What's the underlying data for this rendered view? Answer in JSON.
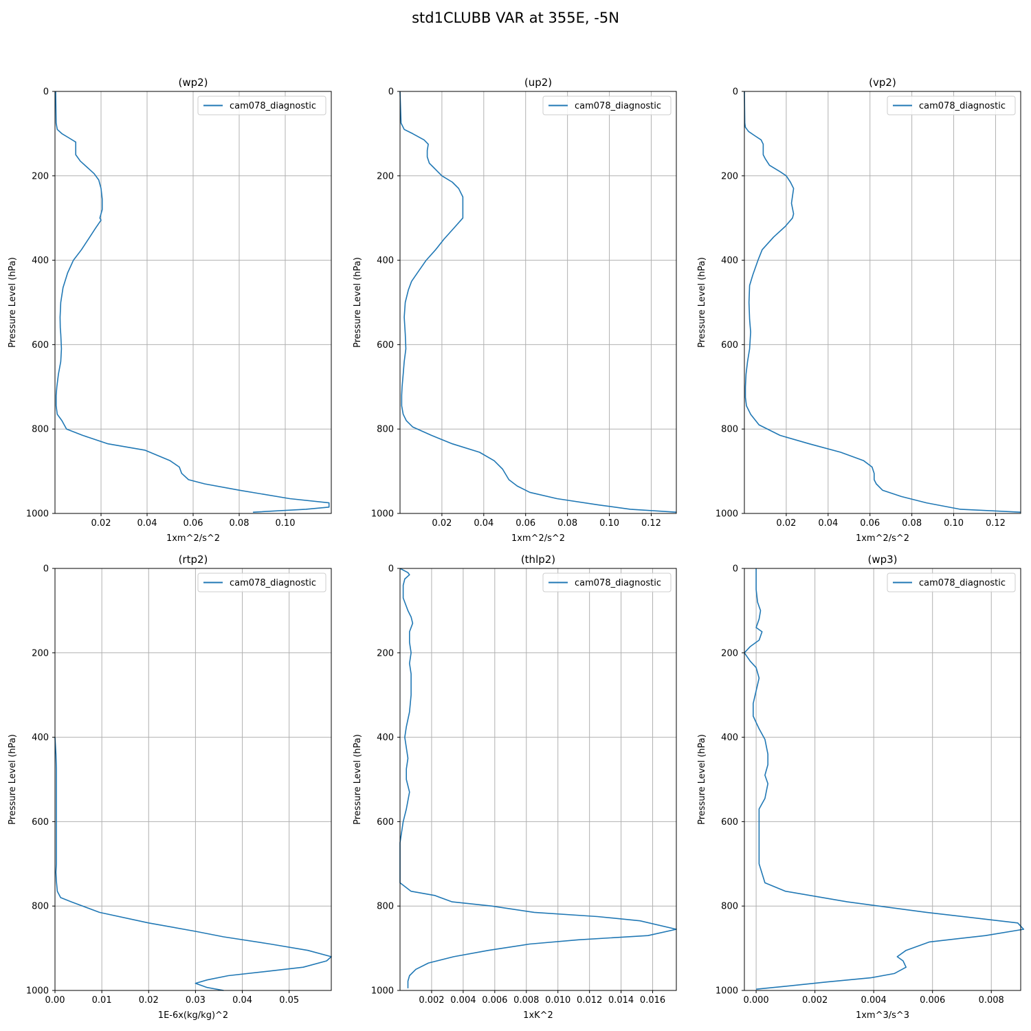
{
  "figure": {
    "title": "std1CLUBB VAR at 355E, -5N"
  },
  "style": {
    "line_color": "#1f77b4",
    "grid_color": "#b0b0b0",
    "axis_color": "#000000"
  },
  "chart_data": [
    {
      "type": "line",
      "title": "(wp2)",
      "xlabel": "1xm^2/s^2",
      "ylabel": "Pressure Level (hPa)",
      "xlim": [
        0.0,
        0.12
      ],
      "ylim": [
        1000,
        0
      ],
      "y_inverted": true,
      "grid": true,
      "legend_position": "top-right",
      "xticks": [
        0.02,
        0.04,
        0.06,
        0.08,
        0.1
      ],
      "xtick_labels": [
        "0.02",
        "0.04",
        "0.06",
        "0.08",
        "0.10"
      ],
      "yticks": [
        0,
        200,
        400,
        600,
        800,
        1000
      ],
      "ytick_labels": [
        "0",
        "200",
        "400",
        "600",
        "800",
        "1000"
      ],
      "series": [
        {
          "name": "cam078_diagnostic",
          "x": [
            0.0003,
            0.0005,
            0.001,
            0.003,
            0.006,
            0.009,
            0.009,
            0.011,
            0.014,
            0.017,
            0.019,
            0.02,
            0.0205,
            0.0205,
            0.0195,
            0.02,
            0.0175,
            0.0145,
            0.0115,
            0.008,
            0.0055,
            0.0035,
            0.0025,
            0.0022,
            0.0023,
            0.0025,
            0.0028,
            0.0025,
            0.0015,
            0.0008,
            0.0005,
            0.0005,
            0.001,
            0.003,
            0.005,
            0.012,
            0.023,
            0.039,
            0.05,
            0.054,
            0.055,
            0.058,
            0.065,
            0.08,
            0.102,
            0.119,
            0.119,
            0.109,
            0.086
          ],
          "y": [
            0,
            75,
            90,
            100,
            110,
            120,
            150,
            165,
            180,
            195,
            210,
            230,
            255,
            280,
            300,
            305,
            325,
            350,
            375,
            400,
            430,
            465,
            500,
            535,
            560,
            575,
            610,
            640,
            670,
            700,
            720,
            745,
            765,
            780,
            800,
            815,
            835,
            850,
            875,
            890,
            905,
            920,
            930,
            945,
            965,
            975,
            985,
            990,
            997
          ]
        }
      ]
    },
    {
      "type": "line",
      "title": "(up2)",
      "xlabel": "1xm^2/s^2",
      "ylabel": "Pressure Level (hPa)",
      "xlim": [
        0.0,
        0.132
      ],
      "ylim": [
        1000,
        0
      ],
      "y_inverted": true,
      "grid": true,
      "legend_position": "top-right",
      "xticks": [
        0.02,
        0.04,
        0.06,
        0.08,
        0.1,
        0.12
      ],
      "xtick_labels": [
        "0.02",
        "0.04",
        "0.06",
        "0.08",
        "0.10",
        "0.12"
      ],
      "yticks": [
        0,
        200,
        400,
        600,
        800,
        1000
      ],
      "ytick_labels": [
        "0",
        "200",
        "400",
        "600",
        "800",
        "1000"
      ],
      "series": [
        {
          "name": "cam078_diagnostic",
          "x": [
            0.0,
            0.0005,
            0.002,
            0.006,
            0.0115,
            0.0135,
            0.013,
            0.013,
            0.014,
            0.016,
            0.02,
            0.025,
            0.028,
            0.03,
            0.03,
            0.03,
            0.0255,
            0.021,
            0.017,
            0.0125,
            0.009,
            0.0055,
            0.004,
            0.0025,
            0.002,
            0.0025,
            0.0028,
            0.002,
            0.0015,
            0.001,
            0.0008,
            0.0008,
            0.0015,
            0.003,
            0.006,
            0.015,
            0.025,
            0.038,
            0.045,
            0.049,
            0.052,
            0.056,
            0.062,
            0.075,
            0.095,
            0.11,
            0.132
          ],
          "y": [
            0,
            75,
            90,
            100,
            115,
            125,
            140,
            155,
            170,
            180,
            200,
            215,
            230,
            250,
            275,
            300,
            325,
            350,
            375,
            400,
            425,
            450,
            470,
            500,
            535,
            575,
            610,
            640,
            670,
            700,
            720,
            745,
            765,
            780,
            795,
            815,
            835,
            855,
            875,
            895,
            920,
            935,
            950,
            965,
            980,
            990,
            997
          ]
        }
      ]
    },
    {
      "type": "line",
      "title": "(vp2)",
      "xlabel": "1xm^2/s^2",
      "ylabel": "Pressure Level (hPa)",
      "xlim": [
        0.0,
        0.132
      ],
      "ylim": [
        1000,
        0
      ],
      "y_inverted": true,
      "grid": true,
      "legend_position": "top-right",
      "xticks": [
        0.02,
        0.04,
        0.06,
        0.08,
        0.1,
        0.12
      ],
      "xtick_labels": [
        "0.02",
        "0.04",
        "0.06",
        "0.08",
        "0.10",
        "0.12"
      ],
      "yticks": [
        0,
        200,
        400,
        600,
        800,
        1000
      ],
      "ytick_labels": [
        "0",
        "200",
        "400",
        "600",
        "800",
        "1000"
      ],
      "series": [
        {
          "name": "cam078_diagnostic",
          "x": [
            0.0,
            0.0002,
            0.0005,
            0.002,
            0.005,
            0.008,
            0.009,
            0.009,
            0.01,
            0.012,
            0.017,
            0.02,
            0.022,
            0.0235,
            0.0225,
            0.0235,
            0.023,
            0.0195,
            0.014,
            0.0085,
            0.0065,
            0.004,
            0.0025,
            0.0022,
            0.0025,
            0.003,
            0.0025,
            0.0015,
            0.0008,
            0.0005,
            0.0005,
            0.001,
            0.003,
            0.007,
            0.017,
            0.031,
            0.046,
            0.057,
            0.061,
            0.062,
            0.062,
            0.063,
            0.066,
            0.075,
            0.087,
            0.103,
            0.132
          ],
          "y": [
            0,
            75,
            85,
            95,
            105,
            115,
            125,
            150,
            160,
            175,
            190,
            200,
            215,
            230,
            265,
            290,
            300,
            320,
            345,
            375,
            400,
            435,
            460,
            500,
            540,
            570,
            610,
            640,
            670,
            700,
            725,
            745,
            765,
            790,
            815,
            835,
            855,
            875,
            890,
            905,
            920,
            930,
            945,
            960,
            975,
            990,
            997
          ]
        }
      ]
    },
    {
      "type": "line",
      "title": "(rtp2)",
      "xlabel": "1E-6x(kg/kg)^2",
      "ylabel": "Pressure Level (hPa)",
      "xlim": [
        0.0,
        0.059
      ],
      "ylim": [
        1000,
        0
      ],
      "y_inverted": true,
      "grid": true,
      "legend_position": "top-right",
      "xticks": [
        0.0,
        0.01,
        0.02,
        0.03,
        0.04,
        0.05
      ],
      "xtick_labels": [
        "0.00",
        "0.01",
        "0.02",
        "0.03",
        "0.04",
        "0.05"
      ],
      "yticks": [
        0,
        200,
        400,
        600,
        800,
        1000
      ],
      "ytick_labels": [
        "0",
        "200",
        "400",
        "600",
        "800",
        "1000"
      ],
      "series": [
        {
          "name": "cam078_diagnostic",
          "x": [
            0.0,
            0.0002,
            0.0003,
            0.0003,
            0.0003,
            0.0003,
            0.0003,
            0.0003,
            0.0002,
            0.0003,
            0.0005,
            0.0012,
            0.0035,
            0.0095,
            0.02,
            0.03,
            0.036,
            0.046,
            0.054,
            0.059,
            0.058,
            0.053,
            0.045,
            0.037,
            0.0325,
            0.03,
            0.0325,
            0.036
          ],
          "y": [
            400,
            440,
            475,
            510,
            560,
            610,
            650,
            700,
            720,
            740,
            765,
            780,
            790,
            815,
            840,
            860,
            873,
            890,
            905,
            920,
            930,
            945,
            955,
            965,
            975,
            983,
            993,
            1000
          ]
        }
      ]
    },
    {
      "type": "line",
      "title": "(thlp2)",
      "xlabel": "1xK^2",
      "ylabel": "Pressure Level (hPa)",
      "xlim": [
        0.0,
        0.0175
      ],
      "ylim": [
        1000,
        0
      ],
      "y_inverted": true,
      "grid": true,
      "legend_position": "top-right",
      "xticks": [
        0.002,
        0.004,
        0.006,
        0.008,
        0.01,
        0.012,
        0.014,
        0.016
      ],
      "xtick_labels": [
        "0.002",
        "0.004",
        "0.006",
        "0.008",
        "0.010",
        "0.012",
        "0.014",
        "0.016"
      ],
      "yticks": [
        0,
        200,
        400,
        600,
        800,
        1000
      ],
      "ytick_labels": [
        "0",
        "200",
        "400",
        "600",
        "800",
        "1000"
      ],
      "series": [
        {
          "name": "cam078_diagnostic",
          "x": [
            0.0,
            0.0005,
            0.0006,
            0.0003,
            0.0002,
            0.0002,
            0.0005,
            0.0007,
            0.0008,
            0.0006,
            0.0006,
            0.0007,
            0.0006,
            0.0007,
            0.0007,
            0.0006,
            0.0004,
            0.0003,
            0.0004,
            0.0005,
            0.0004,
            0.0004,
            0.0006,
            0.0004,
            0.0002,
            0.0001,
            0.0,
            0.0,
            0.0,
            0.0,
            0.0007,
            0.0022,
            0.0033,
            0.0058,
            0.0085,
            0.0125,
            0.0152,
            0.0175,
            0.0157,
            0.0113,
            0.0082,
            0.0056,
            0.0034,
            0.0018,
            0.001,
            0.0006,
            0.0005,
            0.0005
          ],
          "y": [
            0,
            10,
            15,
            25,
            40,
            70,
            100,
            115,
            130,
            150,
            175,
            200,
            225,
            250,
            300,
            340,
            375,
            400,
            425,
            450,
            475,
            500,
            530,
            570,
            600,
            625,
            650,
            700,
            725,
            745,
            765,
            775,
            790,
            800,
            815,
            825,
            835,
            855,
            870,
            880,
            890,
            905,
            920,
            935,
            950,
            965,
            978,
            995
          ]
        }
      ]
    },
    {
      "type": "line",
      "title": "(wp3)",
      "xlabel": "1xm^3/s^3",
      "ylabel": "Pressure Level (hPa)",
      "xlim": [
        -0.0004,
        0.009
      ],
      "ylim": [
        1000,
        0
      ],
      "y_inverted": true,
      "grid": true,
      "legend_position": "top-right",
      "xticks": [
        0.0,
        0.002,
        0.004,
        0.006,
        0.008
      ],
      "xtick_labels": [
        "0.000",
        "0.002",
        "0.004",
        "0.006",
        "0.008"
      ],
      "yticks": [
        0,
        200,
        400,
        600,
        800,
        1000
      ],
      "ytick_labels": [
        "0",
        "200",
        "400",
        "600",
        "800",
        "1000"
      ],
      "series": [
        {
          "name": "cam078_diagnostic",
          "x": [
            0.0,
            0.0,
            5e-05,
            0.00015,
            0.0001,
            0.0,
            0.0002,
            0.0001,
            -0.0002,
            -0.0004,
            -0.0002,
            0.0,
            0.0001,
            0.0,
            -0.0001,
            -0.0001,
            0.0001,
            0.0003,
            0.0004,
            0.0004,
            0.0003,
            0.0004,
            0.0003,
            0.0001,
            0.0001,
            0.0001,
            0.0001,
            0.0003,
            0.001,
            0.0031,
            0.0058,
            0.0089,
            0.0091,
            0.0078,
            0.0059,
            0.0051,
            0.0048,
            0.005,
            0.0051,
            0.0047,
            0.0039,
            0.0024,
            0.001,
            0.0
          ],
          "y": [
            0,
            50,
            80,
            100,
            120,
            140,
            150,
            170,
            185,
            200,
            220,
            235,
            260,
            290,
            320,
            350,
            380,
            405,
            440,
            465,
            490,
            510,
            545,
            570,
            610,
            650,
            700,
            745,
            765,
            790,
            815,
            840,
            855,
            870,
            885,
            905,
            920,
            930,
            945,
            960,
            970,
            980,
            990,
            997
          ]
        }
      ]
    }
  ]
}
